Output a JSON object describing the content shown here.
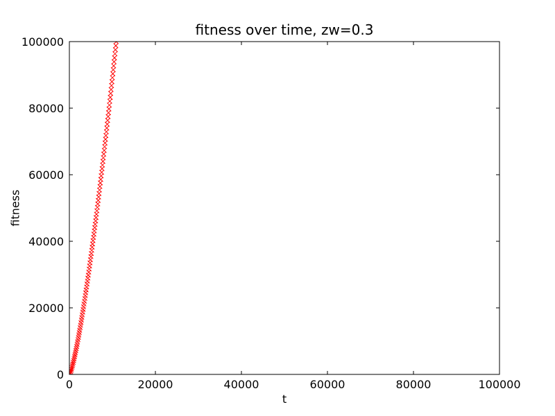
{
  "figure": {
    "background": "#ffffff",
    "frame_color": "#000000"
  },
  "chart_data": {
    "type": "scatter",
    "title": "fitness over time, zw=0.3",
    "xlabel": "t",
    "ylabel": "fitness",
    "xlim": [
      0,
      100000
    ],
    "ylim": [
      0,
      100000
    ],
    "x_ticks": [
      0,
      20000,
      40000,
      60000,
      80000,
      100000
    ],
    "y_ticks": [
      0,
      20000,
      40000,
      60000,
      80000,
      100000
    ],
    "grid": false,
    "legend": null,
    "marker": "x",
    "marker_color": "#ff0000",
    "marker_size": 6.5,
    "series": [
      {
        "name": "fitness",
        "points": [
          [
            0,
            0
          ],
          [
            100,
            192
          ],
          [
            200,
            484
          ],
          [
            300,
            830
          ],
          [
            400,
            1222
          ],
          [
            500,
            1639
          ],
          [
            600,
            2094
          ],
          [
            700,
            2570
          ],
          [
            800,
            3074
          ],
          [
            900,
            3597
          ],
          [
            1000,
            4137
          ],
          [
            1100,
            4697
          ],
          [
            1200,
            5276
          ],
          [
            1300,
            5871
          ],
          [
            1400,
            6479
          ],
          [
            1500,
            7108
          ],
          [
            1600,
            7742
          ],
          [
            1700,
            8395
          ],
          [
            1800,
            9060
          ],
          [
            1900,
            9737
          ],
          [
            2000,
            10424
          ],
          [
            2100,
            11123
          ],
          [
            2200,
            11836
          ],
          [
            2300,
            12556
          ],
          [
            2400,
            13290
          ],
          [
            2500,
            14028
          ],
          [
            2600,
            14790
          ],
          [
            2700,
            15549
          ],
          [
            2800,
            16327
          ],
          [
            2900,
            17108
          ],
          [
            3000,
            17903
          ],
          [
            3100,
            18709
          ],
          [
            3200,
            19514
          ],
          [
            3300,
            20332
          ],
          [
            3400,
            21159
          ],
          [
            3500,
            21975
          ],
          [
            3600,
            22830
          ],
          [
            3700,
            23664
          ],
          [
            3800,
            24532
          ],
          [
            3900,
            25387
          ],
          [
            4000,
            26262
          ],
          [
            4100,
            27152
          ],
          [
            4200,
            28038
          ],
          [
            4300,
            28932
          ],
          [
            4400,
            29830
          ],
          [
            4500,
            30740
          ],
          [
            4600,
            31652
          ],
          [
            4700,
            32577
          ],
          [
            4800,
            33500
          ],
          [
            4900,
            34440
          ],
          [
            5000,
            35380
          ],
          [
            5100,
            36324
          ],
          [
            5200,
            37276
          ],
          [
            5300,
            38234
          ],
          [
            5400,
            39198
          ],
          [
            5500,
            40170
          ],
          [
            5600,
            41146
          ],
          [
            5700,
            42128
          ],
          [
            5800,
            43118
          ],
          [
            5900,
            44112
          ],
          [
            6000,
            45112
          ],
          [
            6100,
            46117
          ],
          [
            6200,
            47128
          ],
          [
            6300,
            48145
          ],
          [
            6400,
            49163
          ],
          [
            6500,
            50190
          ],
          [
            6600,
            51227
          ],
          [
            6700,
            52262
          ],
          [
            6800,
            53300
          ],
          [
            6900,
            54352
          ],
          [
            7000,
            55406
          ],
          [
            7100,
            56462
          ],
          [
            7200,
            57527
          ],
          [
            7300,
            58597
          ],
          [
            7400,
            59663
          ],
          [
            7500,
            60743
          ],
          [
            7600,
            61828
          ],
          [
            7700,
            62913
          ],
          [
            7800,
            64004
          ],
          [
            7900,
            65103
          ],
          [
            8000,
            66207
          ],
          [
            8100,
            67308
          ],
          [
            8200,
            68422
          ],
          [
            8300,
            69537
          ],
          [
            8400,
            70659
          ],
          [
            8500,
            71778
          ],
          [
            8600,
            72907
          ],
          [
            8700,
            74036
          ],
          [
            8800,
            75178
          ],
          [
            8900,
            76316
          ],
          [
            9000,
            77459
          ],
          [
            9100,
            78608
          ],
          [
            9200,
            79764
          ],
          [
            9300,
            80921
          ],
          [
            9400,
            82087
          ],
          [
            9500,
            83252
          ],
          [
            9600,
            84426
          ],
          [
            9700,
            85599
          ],
          [
            9800,
            86776
          ],
          [
            9900,
            87961
          ],
          [
            10000,
            89147
          ],
          [
            10100,
            90337
          ],
          [
            10200,
            91530
          ],
          [
            10300,
            92728
          ],
          [
            10400,
            93930
          ],
          [
            10500,
            95135
          ],
          [
            10600,
            96347
          ],
          [
            10700,
            97561
          ],
          [
            10800,
            98781
          ],
          [
            10900,
            100000
          ]
        ]
      }
    ]
  }
}
